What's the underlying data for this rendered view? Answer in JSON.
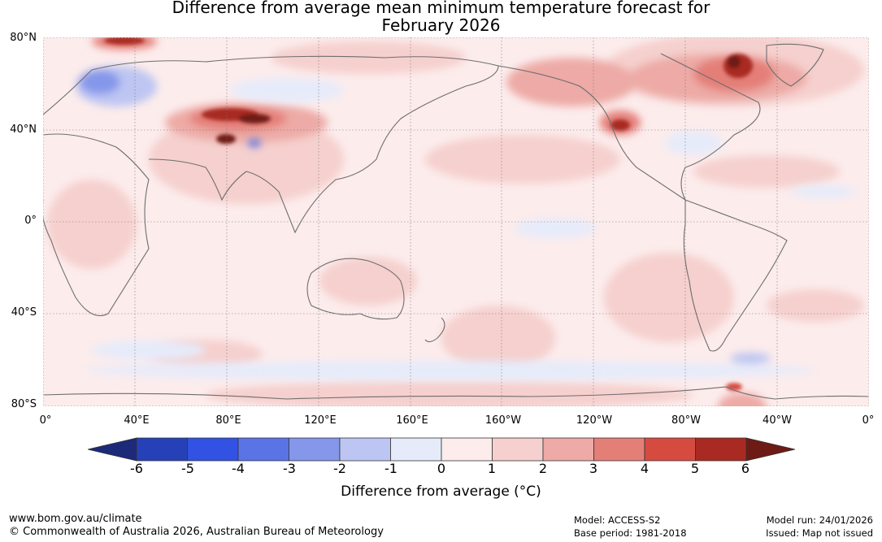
{
  "title": {
    "line1": "Difference from average mean minimum temperature forecast for",
    "line2": "February 2026"
  },
  "map": {
    "lat_labels": [
      "80°N",
      "40°N",
      "0°",
      "40°S",
      "80°S"
    ],
    "lon_labels": [
      "0°",
      "40°E",
      "80°E",
      "120°E",
      "160°E",
      "160°W",
      "120°W",
      "80°W",
      "40°W",
      "0°"
    ]
  },
  "colorbar": {
    "ticks": [
      "-6",
      "-5",
      "-4",
      "-3",
      "-2",
      "-1",
      "0",
      "1",
      "2",
      "3",
      "4",
      "5",
      "6"
    ],
    "colors": {
      "below_min": "#1d2a7a",
      "bins": [
        "#2641b8",
        "#3152e3",
        "#5a74e6",
        "#8597ea",
        "#bdc6f2",
        "#e6ebfa",
        "#fcecec",
        "#f5d0ce",
        "#edaaa6",
        "#e47f78",
        "#d64b40",
        "#a82a22"
      ],
      "above_max": "#6e1a15"
    },
    "label": "Difference from average (°C)"
  },
  "footer": {
    "website": "www.bom.gov.au/climate",
    "copyright": "© Commonwealth of Australia 2026, Australian Bureau of Meteorology",
    "model": "Model: ACCESS-S2",
    "base_period": "Base period: 1981-2018",
    "model_run": "Model run: 24/01/2026",
    "issued": "Issued: Map not issued"
  }
}
